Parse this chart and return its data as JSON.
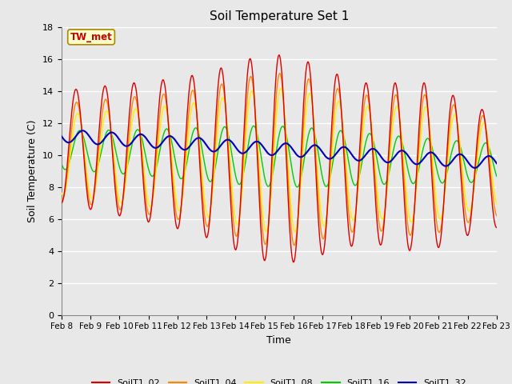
{
  "title": "Soil Temperature Set 1",
  "xlabel": "Time",
  "ylabel": "Soil Temperature (C)",
  "ylim": [
    0,
    18
  ],
  "yticks": [
    0,
    2,
    4,
    6,
    8,
    10,
    12,
    14,
    16,
    18
  ],
  "fig_bg": "#f0f0f0",
  "plot_bg": "#f0f0f0",
  "annotation": "TW_met",
  "legend_labels": [
    "SoilT1_02",
    "SoilT1_04",
    "SoilT1_08",
    "SoilT1_16",
    "SoilT1_32"
  ],
  "colors": {
    "SoilT1_02": "#dd0000",
    "SoilT1_04": "#ff8800",
    "SoilT1_08": "#ffee00",
    "SoilT1_16": "#00cc00",
    "SoilT1_32": "#0000bb"
  },
  "xtick_labels": [
    "Feb 8",
    "Feb 9",
    "Feb 10",
    "Feb 11",
    "Feb 12",
    "Feb 13",
    "Feb 14",
    "Feb 15",
    "Feb 16",
    "Feb 17",
    "Feb 18",
    "Feb 19",
    "Feb 20",
    "Feb 21",
    "Feb 22",
    "Feb 23"
  ],
  "n_days": 15,
  "pts_per_day": 48
}
